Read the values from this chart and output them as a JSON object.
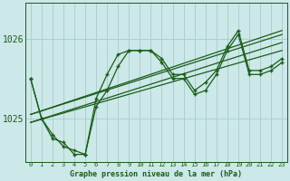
{
  "title": "Graphe pression niveau de la mer (hPa)",
  "bg_color": "#cce8e8",
  "grid_color": "#aacccc",
  "line_color": "#1a5c1a",
  "xlim": [
    -0.5,
    23.5
  ],
  "ylim": [
    1024.45,
    1026.45
  ],
  "yticks": [
    1025,
    1026
  ],
  "xticks": [
    0,
    1,
    2,
    3,
    4,
    5,
    6,
    7,
    8,
    9,
    10,
    11,
    12,
    13,
    14,
    15,
    16,
    17,
    18,
    19,
    20,
    21,
    22,
    23
  ],
  "linear_lines": [
    {
      "x0": 0,
      "y0": 1024.95,
      "x1": 23,
      "y1": 1025.85
    },
    {
      "x0": 0,
      "y0": 1024.95,
      "x1": 23,
      "y1": 1025.95
    },
    {
      "x0": 0,
      "y0": 1025.05,
      "x1": 23,
      "y1": 1026.05
    },
    {
      "x0": 0,
      "y0": 1025.05,
      "x1": 23,
      "y1": 1026.1
    }
  ],
  "jagged_series1": {
    "x": [
      0,
      1,
      2,
      3,
      4,
      5,
      6,
      7,
      8,
      9,
      10,
      11,
      12,
      13,
      14,
      15,
      16,
      17,
      18,
      19,
      20,
      21,
      22,
      23
    ],
    "y": [
      1025.5,
      1025.0,
      1024.8,
      1024.65,
      1024.6,
      1024.55,
      1025.15,
      1025.35,
      1025.65,
      1025.85,
      1025.85,
      1025.85,
      1025.7,
      1025.5,
      1025.5,
      1025.3,
      1025.35,
      1025.55,
      1025.85,
      1026.05,
      1025.55,
      1025.55,
      1025.6,
      1025.7
    ]
  },
  "jagged_series2": {
    "x": [
      0,
      1,
      2,
      3,
      4,
      5,
      6,
      7,
      8,
      9,
      10,
      11,
      12,
      13,
      14,
      15,
      16,
      17,
      18,
      19,
      20,
      21,
      22,
      23
    ],
    "y": [
      1025.5,
      1025.0,
      1024.75,
      1024.7,
      1024.55,
      1024.55,
      1025.25,
      1025.55,
      1025.8,
      1025.85,
      1025.85,
      1025.85,
      1025.75,
      1025.55,
      1025.55,
      1025.35,
      1025.45,
      1025.6,
      1025.9,
      1026.1,
      1025.6,
      1025.6,
      1025.65,
      1025.75
    ]
  }
}
